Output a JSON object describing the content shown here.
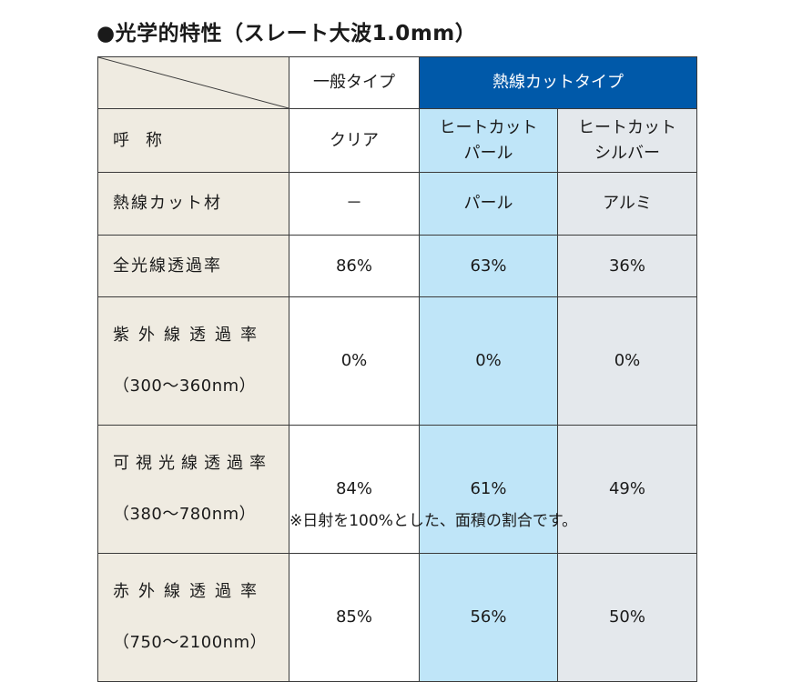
{
  "title": "●光学的特性（スレート大波1.0mm）",
  "header": {
    "general": "一般タイプ",
    "heat_cut": "熱線カットタイプ"
  },
  "rows": [
    {
      "label": "呼　称",
      "general": "クリア",
      "pearl": "ヒートカット\nパール",
      "silver": "ヒートカット\nシルバー"
    },
    {
      "label": "熱線カット材",
      "general": "－",
      "pearl": "パール",
      "silver": "アルミ"
    },
    {
      "label": "全光線透過率",
      "general": "86%",
      "pearl": "63%",
      "silver": "36%"
    },
    {
      "label": "紫外線透過率",
      "sublabel": "（300～360nm）",
      "general": "0%",
      "pearl": "0%",
      "silver": "0%"
    },
    {
      "label": "可視光線透過率",
      "sublabel": "（380～780nm）",
      "general": "84%",
      "pearl": "61%",
      "silver": "49%"
    },
    {
      "label": "赤外線透過率",
      "sublabel": "（750～2100nm）",
      "general": "85%",
      "pearl": "56%",
      "silver": "50%"
    }
  ],
  "footnote": "※日射を100%とした、面積の割合です。",
  "colors": {
    "heat_cut_header": "#0059a9",
    "pearl_column": "#bfe5f8",
    "silver_column": "#e4e8ec",
    "label_column": "#efebe1"
  }
}
